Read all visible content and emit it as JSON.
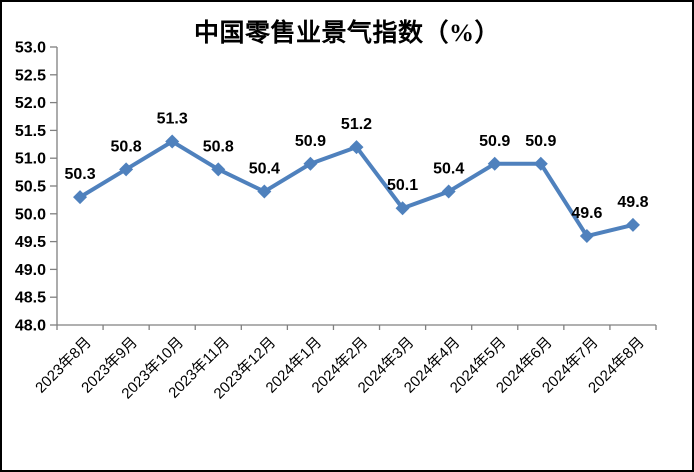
{
  "chart_data": {
    "type": "line",
    "title": "中国零售业景气指数（%）",
    "categories": [
      "2023年8月",
      "2023年9月",
      "2023年10月",
      "2023年11月",
      "2023年12月",
      "2024年1月",
      "2024年2月",
      "2024年3月",
      "2024年4月",
      "2024年5月",
      "2024年6月",
      "2024年7月",
      "2024年8月"
    ],
    "values": [
      50.3,
      50.8,
      51.3,
      50.8,
      50.4,
      50.9,
      51.2,
      50.1,
      50.4,
      50.9,
      50.9,
      49.6,
      49.8
    ],
    "data_labels": [
      "50.3",
      "50.8",
      "51.3",
      "50.8",
      "50.4",
      "50.9",
      "51.2",
      "50.1",
      "50.4",
      "50.9",
      "50.9",
      "49.6",
      "49.8"
    ],
    "xlabel": "",
    "ylabel": "",
    "ylim": [
      48.0,
      53.0
    ],
    "ytick_step": 0.5,
    "grid": false,
    "legend": "none",
    "marker": "diamond",
    "colors": {
      "line": "#4F81BD",
      "axis": "#808080",
      "text": "#000000",
      "background": "#FFFFFF"
    }
  }
}
